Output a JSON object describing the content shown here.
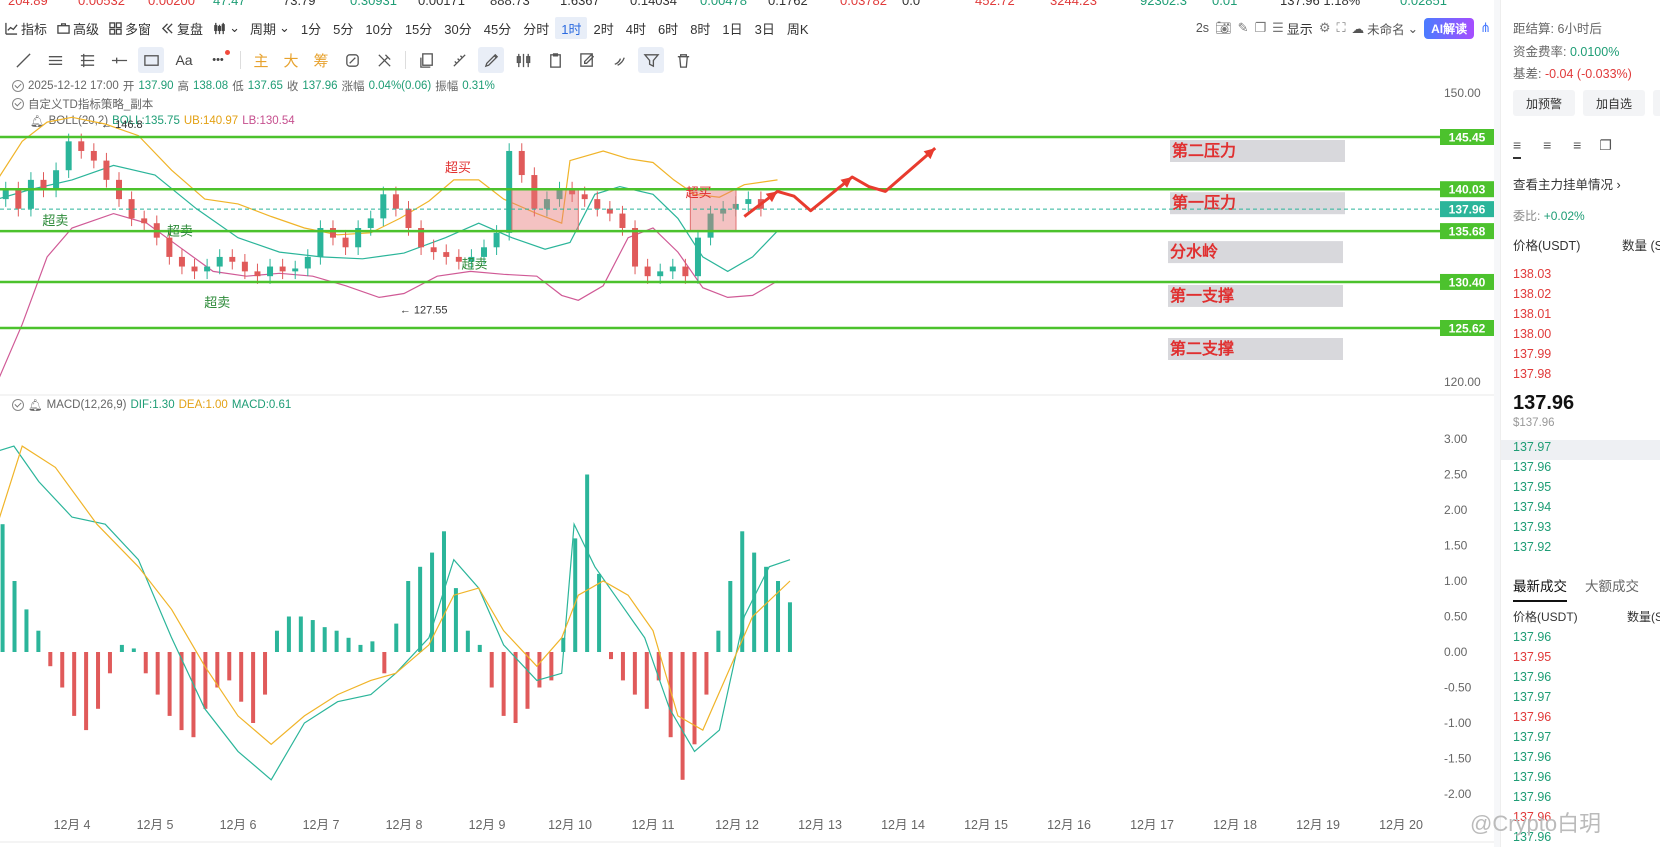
{
  "ticker": [
    "204.89",
    "0.00532",
    "0.00200",
    "47.47",
    "73.79",
    "0.30931",
    "0.00171",
    "888.73",
    "1.6367",
    "0.14034",
    "0.00478",
    "0.1762",
    "0.03782",
    "0.0",
    "452.72",
    "3244.23",
    "92302.3",
    "0.01",
    "137.96 1.18%",
    "0.02851"
  ],
  "toolbar": {
    "indicator": "指标",
    "advanced": "高级",
    "multiwindow": "多窗",
    "replay": "复盘",
    "period": "周期",
    "timeframes": [
      "1分",
      "5分",
      "10分",
      "15分",
      "30分",
      "45分",
      "分时",
      "1时",
      "2时",
      "4时",
      "6时",
      "8时",
      "1日",
      "3日",
      "周K"
    ],
    "active_tf": "1时",
    "refresh": "2s",
    "display": "显示",
    "unnamed": "未命名",
    "ai": "AI解读"
  },
  "tools2": {
    "text": "Aa",
    "more": "•••",
    "main": "主",
    "big": "大",
    "chip": "筹"
  },
  "info": {
    "datetime": "2025-12-12 17:00",
    "open_label": "开",
    "open": "137.90",
    "high_label": "高",
    "high": "138.08",
    "low_label": "低",
    "low": "137.65",
    "close_label": "收",
    "close": "137.96",
    "chg_label": "涨幅",
    "chg": "0.04%(0.06)",
    "amp_label": "振幅",
    "amp": "0.31%",
    "strategy": "自定义TD指标策略_副本",
    "boll": "BOLL(20,2)",
    "boll_mid": "BOLL:135.75",
    "boll_ub": "UB:140.97",
    "boll_lb": "LB:130.54",
    "macd": "MACD(12,26,9)",
    "dif": "DIF:1.30",
    "dea": "DEA:1.00",
    "macd_val": "MACD:0.61"
  },
  "chart_data": {
    "type": "line",
    "title": "",
    "x_labels": [
      "12月 4",
      "12月 5",
      "12月 6",
      "12月 7",
      "12月 8",
      "12月 9",
      "12月 10",
      "12月 11",
      "12月 12",
      "12月 13",
      "12月 14",
      "12月 15",
      "12月 16",
      "12月 17",
      "12月 18",
      "12月 19",
      "12月 20"
    ],
    "price_ticks": [
      "150.00",
      "120.00"
    ],
    "macd_ticks": [
      "3.00",
      "2.50",
      "2.00",
      "1.50",
      "1.00",
      "0.50",
      "0.00",
      "-0.50",
      "-1.00",
      "-1.50",
      "-2.00"
    ],
    "levels": [
      {
        "value": 145.45,
        "label": "145.45",
        "name": "第二压力"
      },
      {
        "value": 140.03,
        "label": "140.03",
        "name": "第一压力"
      },
      {
        "value": 135.68,
        "label": "135.68",
        "name": "分水岭"
      },
      {
        "value": 130.4,
        "label": "130.40",
        "name": "第一支撑"
      },
      {
        "value": 125.62,
        "label": "125.62",
        "name": "第二支撑"
      }
    ],
    "current_price": 137.96,
    "current_label": "137.96",
    "hl_marks": [
      {
        "text": "146.8",
        "value": 146.8
      },
      {
        "text": "127.55",
        "value": 127.55
      }
    ],
    "signals": [
      {
        "text": "超卖",
        "type": "oversold"
      },
      {
        "text": "超卖",
        "type": "oversold"
      },
      {
        "text": "超卖",
        "type": "oversold"
      },
      {
        "text": "超卖",
        "type": "oversold"
      },
      {
        "text": "超买",
        "type": "overbought"
      },
      {
        "text": "超买",
        "type": "overbought"
      }
    ]
  },
  "sidebar": {
    "countdown_label": "距结算:",
    "countdown": "6小时后",
    "funding_label": "资金费率:",
    "funding": "0.0100%",
    "basis_label": "基差:",
    "basis": "-0.04 (-0.033%)",
    "alert_btn": "加预警",
    "fav_btn": "加自选",
    "main_orders": "查看主力挂单情况",
    "ratio_label": "委比:",
    "ratio": "+0.02%",
    "price_hdr": "价格(USDT)",
    "qty_hdr": "数量 (S",
    "asks": [
      "138.03",
      "138.02",
      "138.01",
      "138.00",
      "137.99",
      "137.98"
    ],
    "last_price": "137.96",
    "last_usd": "$137.96",
    "bids": [
      "137.97",
      "137.96",
      "137.95",
      "137.94",
      "137.93",
      "137.92"
    ],
    "tab_latest": "最新成交",
    "tab_large": "大额成交",
    "trade_hdr_price": "价格(USDT)",
    "trade_hdr_qty": "数量(S",
    "trades": [
      {
        "p": "137.96",
        "c": "g"
      },
      {
        "p": "137.95",
        "c": "r"
      },
      {
        "p": "137.96",
        "c": "g"
      },
      {
        "p": "137.97",
        "c": "g"
      },
      {
        "p": "137.96",
        "c": "r"
      },
      {
        "p": "137.97",
        "c": "g"
      },
      {
        "p": "137.96",
        "c": "g"
      },
      {
        "p": "137.96",
        "c": "g"
      },
      {
        "p": "137.96",
        "c": "g"
      },
      {
        "p": "137.96",
        "c": "r"
      },
      {
        "p": "137.96",
        "c": "g"
      }
    ]
  },
  "watermark": "@Crypto白玥"
}
